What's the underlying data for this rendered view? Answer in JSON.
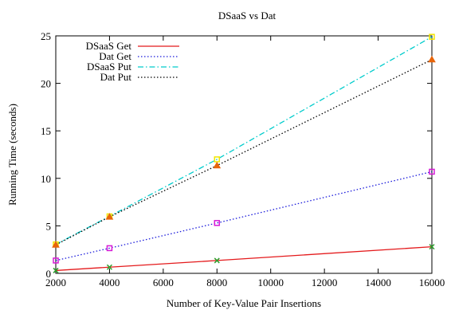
{
  "chart_data": {
    "type": "line",
    "title": "DSaaS vs Dat",
    "xlabel": "Number of Key-Value Pair Insertions",
    "ylabel": "Running Time (seconds)",
    "xlim": [
      2000,
      16000
    ],
    "ylim": [
      0,
      25
    ],
    "xticks": [
      2000,
      4000,
      6000,
      8000,
      10000,
      12000,
      14000,
      16000
    ],
    "yticks": [
      0,
      5,
      10,
      15,
      20,
      25
    ],
    "grid": false,
    "legend_position": "top-left",
    "x": [
      2000,
      4000,
      8000,
      16000
    ],
    "series": [
      {
        "name": "DSaaS Get",
        "values": [
          0.3,
          0.65,
          1.35,
          2.8
        ],
        "color": "#e41a1c",
        "dash": "solid",
        "marker": "x",
        "marker_color": "#2ca02c"
      },
      {
        "name": "Dat Get",
        "values": [
          1.35,
          2.65,
          5.3,
          10.7
        ],
        "color": "#1a1adb",
        "dash": "dotted",
        "marker": "square",
        "marker_color": "#d61ad6"
      },
      {
        "name": "DSaaS Put",
        "values": [
          3.05,
          6.0,
          12.0,
          24.9
        ],
        "color": "#00cccc",
        "dash": "dashdot",
        "marker": "square",
        "marker_color": "#f2e600"
      },
      {
        "name": "Dat Put",
        "values": [
          3.0,
          5.95,
          11.35,
          22.5
        ],
        "color": "#000000",
        "dash": "dotted",
        "marker": "triangle",
        "marker_color": "#e8650a"
      }
    ]
  }
}
